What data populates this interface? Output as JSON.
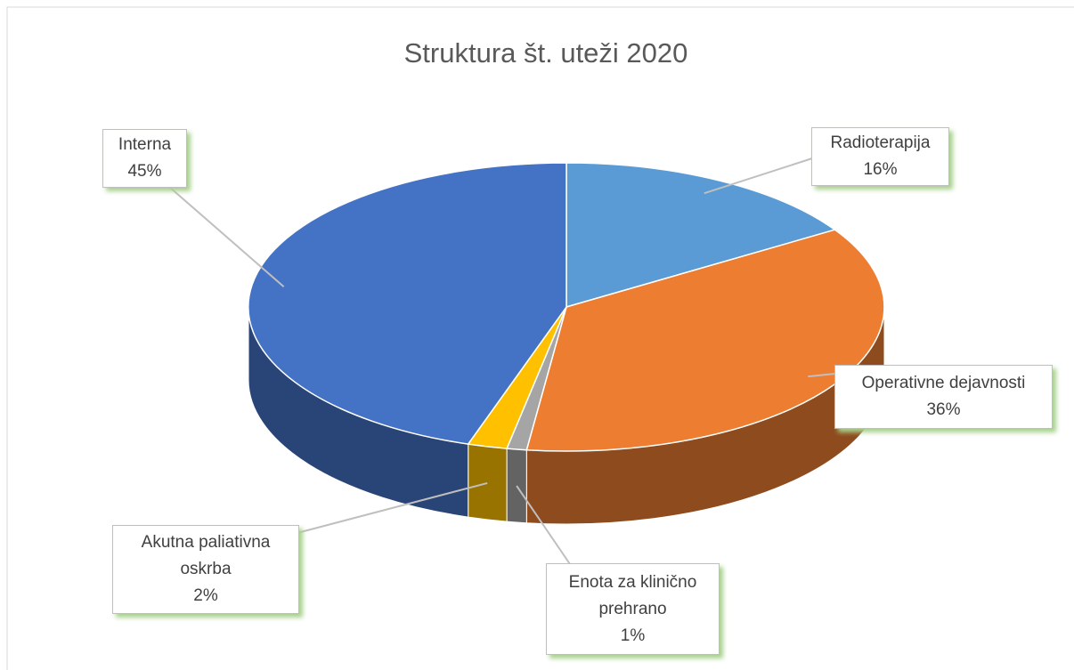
{
  "chart_data": {
    "type": "pie3d",
    "title": "Struktura št. uteži 2020",
    "categories": [
      "Radioterapija",
      "Operativne dejavnosti",
      "Enota za klinično prehrano",
      "Akutna paliativna oskrba",
      "Interna"
    ],
    "values": [
      16,
      36,
      1,
      2,
      45
    ],
    "value_labels": [
      "16%",
      "36%",
      "1%",
      "2%",
      "45%"
    ],
    "colors": [
      "#5b9bd5",
      "#ed7d31",
      "#a5a5a5",
      "#ffc000",
      "#4472c4"
    ]
  }
}
